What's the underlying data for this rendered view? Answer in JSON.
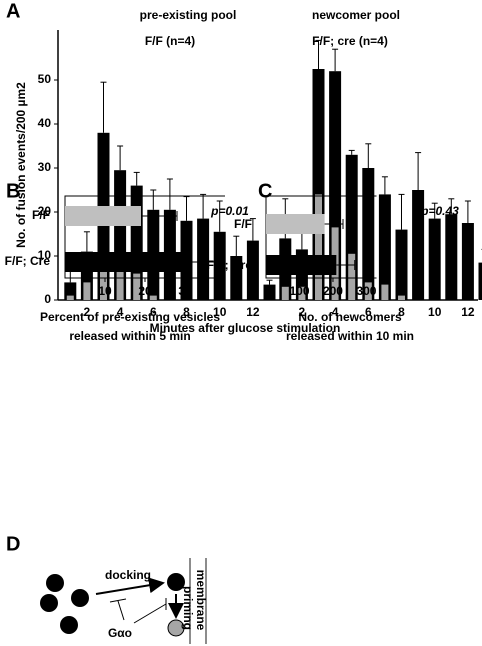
{
  "chart_data": [
    {
      "type": "grouped-overlay-bar",
      "panel": "A",
      "y_label": "No. of fusion events/200 µm2",
      "x_label": "Minutes after glucose stimulation",
      "ylim": [
        0,
        60
      ],
      "yticks": [
        0,
        10,
        20,
        30,
        40,
        50
      ],
      "groups": [
        {
          "pool": "pre-existing pool",
          "genotype": "F/F (n=4)",
          "categories": [
            null,
            "2",
            null,
            "4",
            null,
            "6",
            null,
            "8",
            null,
            "10",
            null,
            "12",
            null
          ],
          "series": [
            {
              "color": "#000000",
              "values": [
                4,
                11,
                38,
                29.5,
                26,
                20.5,
                20.5,
                18,
                18.5,
                15.5,
                10,
                13.5,
                3.5
              ],
              "errors": [
                3,
                4.5,
                11.5,
                5.5,
                3,
                4.5,
                7,
                5.5,
                5.5,
                7,
                4.5,
                5,
                1
              ]
            },
            {
              "color": "#a6a6a6",
              "values": [
                1,
                4,
                8,
                8.5,
                6,
                1,
                0,
                0,
                0,
                0,
                0,
                0,
                0
              ]
            }
          ]
        },
        {
          "pool": "newcomer pool",
          "genotype": "F/F; cre (n=4)",
          "categories": [
            null,
            "2",
            null,
            "4",
            null,
            "6",
            null,
            "8",
            null,
            "10",
            null,
            "12",
            null
          ],
          "series": [
            {
              "color": "#000000",
              "values": [
                14,
                11.5,
                52.5,
                52,
                33,
                30,
                24,
                16,
                25,
                18.5,
                19.5,
                17.5,
                8.5
              ],
              "errors": [
                9,
                5.5,
                6.5,
                5,
                1,
                5.5,
                4,
                8,
                8.5,
                3.5,
                3.5,
                5,
                3
              ]
            },
            {
              "color": "#a6a6a6",
              "values": [
                3,
                3,
                24,
                16.5,
                10.5,
                4,
                3.5,
                1,
                0,
                0,
                0,
                0,
                0
              ]
            }
          ]
        }
      ]
    },
    {
      "type": "hbar",
      "panel": "B",
      "annotation": "p=0.01",
      "x_label": [
        "Percent of pre-existing vesicles",
        "released within 5 min"
      ],
      "categories": [
        "F/F",
        "F/F; Cre"
      ],
      "values": [
        19,
        31
      ],
      "errors": [
        9,
        7
      ],
      "colors": [
        "#bfbfbf",
        "#000000"
      ],
      "xlim": [
        0,
        40
      ],
      "xticks": [
        10,
        20,
        30
      ]
    },
    {
      "type": "hbar",
      "panel": "C",
      "annotation": "p=0.43",
      "x_label": [
        "No. of newcomers",
        "released within 10 min"
      ],
      "categories": [
        "F/F",
        "F/F; Cre"
      ],
      "values": [
        175,
        210
      ],
      "errors": [
        55,
        55
      ],
      "colors": [
        "#bfbfbf",
        "#000000"
      ],
      "xlim": [
        0,
        330
      ],
      "xticks": [
        100,
        200,
        300
      ]
    }
  ],
  "diagram": {
    "panel": "D",
    "docking": "docking",
    "priming": "priming",
    "regulator": "Gαo",
    "membrane": "membrane"
  }
}
